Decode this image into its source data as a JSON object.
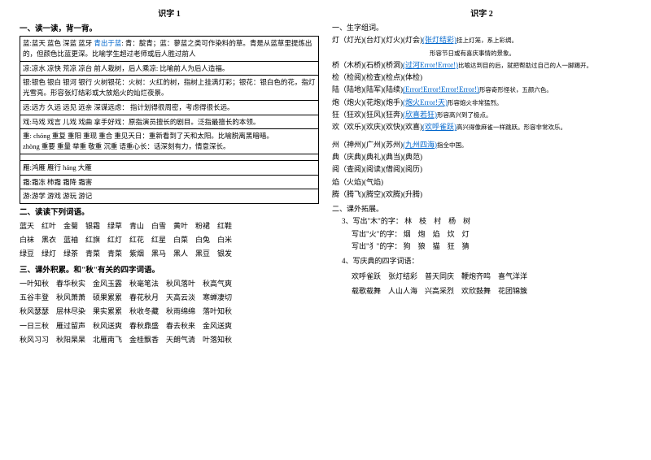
{
  "left": {
    "title": "识字 1",
    "s1": "一、读一读，背一背。",
    "rows": [
      {
        "pre": "蓝:蓝天  蓝色  深蓝  蓝牙  ",
        "blue": "青出于蓝",
        "post": ": 青：靛青；蓝：蓼蓝之类可作染料的草。青是从蓝草里提炼出的，但颜色比蓝更深。比喻学生超过老师或后人胜过前人"
      },
      {
        "plain": "凉:凉水  凉快  荒凉  凉台  前人栽树，后人乘凉: 比喻前人为后人造福。"
      },
      {
        "plain": "银:银色  银白  银河  银行  火树银花：火树：火红的树，指树上挂满灯彩；银花：银白色的花，指灯光雪亮。形容张灯结彩或大放焰火的灿烂夜景。"
      },
      {
        "plain": "远:远方  久远  远见  远亲  深谋远虑：   指计划得很周密，考虑得很长远。"
      },
      {
        "plain": "戏:马戏  戏言  儿戏  戏曲   拿手好戏：原指演员擅长的剧目。泛指最擅长的本领。"
      },
      {
        "plain": "重: chóng  重复  重阳  重现  重合   重见天日：重新看到了天和太阳。比喻脱离黑暗暗。\n       zhòng  重要  重量  举重  敬重  沉重  语重心长：话深刻有力，情意深长。"
      },
      {
        "plain": ""
      },
      {
        "plain": "雁:鸿雁  雁行 háng   大雁"
      },
      {
        "plain": "霜:霜冻   柿霜   霜降   霜害"
      },
      {
        "plain": "游:游学  游戏  游玩   游记"
      }
    ],
    "s2": "二、读读下列词语。",
    "words": [
      "蓝天　红叶　金菊　银霜　绿草　青山　白雪　黄叶　粉裙　红鞋",
      "白袜　黑衣　蓝袖　红旗　红灯　红花　红星　白菜　白兔　白米",
      "绿豆　绿灯　绿茶　青菜　青菜　紫烟　黑马　黑人　黑豆　银发"
    ],
    "s3": "三、课外积累。和\"秋\"有关的四字词语。",
    "idioms": [
      "一叶知秋　春华秋实　金风玉露　秋毫笔法　秋风落叶　秋高气爽",
      "五谷丰登　秋风萧萧　硕果累累　春花秋月　天高云淡　寒蝉凄切",
      "秋风瑟瑟　层林尽染　果实累累　秋收冬藏　秋雨绵绵　落叶知秋",
      "一日三秋　雁过留声　秋风送爽　春秋鼎盛　春去秋来　金风送爽",
      "秋风习习　秋阳杲杲　北雁南飞　金桂飘香　天朗气清　叶落知秋"
    ]
  },
  "right": {
    "title": "识字 2",
    "s1": "一、生字组词。",
    "chars": [
      {
        "pre": "灯（灯光)(台灯)(灯火)(灯会)",
        "blue": "(张灯结彩)",
        "tail": "挂上灯笼，系上彩绸。"
      },
      {
        "plain": "",
        "tail": "形容节日或有喜庆事情的景象。",
        "indent": true
      },
      {
        "pre": "桥（木桥)(石桥)(桥洞)",
        "blue": "(过河Error!Error!)",
        "tail": "比喻达到目的后，就把帮助过自己的人一脚踢开。"
      },
      {
        "pre": "检（检阅)(检查)(检点)(体检)",
        "blue": "",
        "tail": ""
      },
      {
        "pre": "陆（陆地)(陆军)(陆续)",
        "blue": "(Error!Error!Error!Error!)",
        "tail": "形容奇形怪状，五颜六色。"
      },
      {
        "pre": "炮（炮火)(花炮)(炮手)",
        "blue": "(炮火Error!天)",
        "tail": "形容炮火非常猛烈。"
      },
      {
        "pre": "狂（狂欢)(狂风)(狂奔)",
        "blue": "(欣喜若狂)",
        "tail": "形容高兴到了极点。"
      },
      {
        "pre": "欢（欢乐)(欢庆)(欢快)(欢喜)",
        "blue": "(欢呼雀跃)",
        "tail": "高兴得像麻雀一样跳跃。形容非常欢乐。"
      },
      {
        "gap": true
      },
      {
        "pre": "州（神州)(广州)(苏州)",
        "blue": "(九州四海)",
        "tail": "指全中国。"
      },
      {
        "pre": "典（庆典)(典礼)(典当)(典范)",
        "blue": "",
        "tail": ""
      },
      {
        "pre": "阅（查阅)(阅读)(借阅)(阅历)",
        "blue": "",
        "tail": ""
      },
      {
        "pre": "焰（火焰)(气焰)",
        "blue": "",
        "tail": ""
      },
      {
        "pre": "腾（腾飞)(腾空)(欢腾)(升腾)",
        "blue": "",
        "tail": ""
      }
    ],
    "s2": "二、课外拓展。",
    "s3": "3、写出\"木\"的字： 林　枝　村　杨　树",
    "s3b": "写出\"火\"的字： 烟　炮　焰　炊　灯",
    "s3c": "写出\"犭\"的字： 狗　狼　猫　狂　猜",
    "s4": "4、写庆典的四字词语：",
    "idioms": [
      "欢呼雀跃　张灯结彩　普天同庆　鞭炮齐鸣　喜气洋洋",
      "载歌载舞　人山人海　兴高采烈　欢欣鼓舞　花团锦簇"
    ]
  }
}
